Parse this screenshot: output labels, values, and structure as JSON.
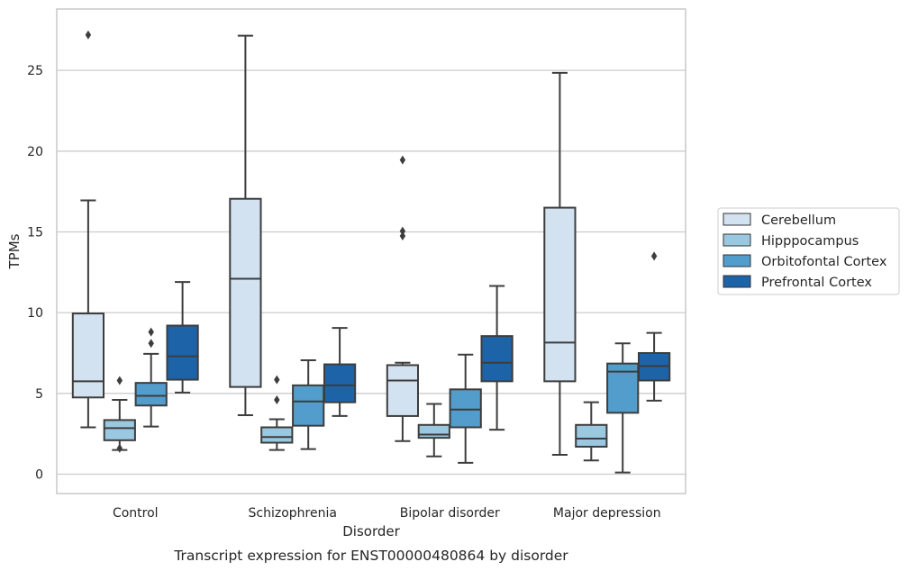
{
  "chart_data": {
    "type": "boxplot",
    "title": "",
    "caption": "Transcript expression for ENST00000480864 by disorder",
    "xlabel": "Disorder",
    "ylabel": "TPMs",
    "ylim": [
      -1.2,
      28.8
    ],
    "yticks": [
      "0",
      "5",
      "10",
      "15",
      "20",
      "25"
    ],
    "categories": [
      "Control",
      "Schizophrenia",
      "Bipolar disorder",
      "Major depression"
    ],
    "grid": "horizontal",
    "legend_position": "right",
    "series": [
      {
        "name": "Cerebellum",
        "color": "#d2e2f1",
        "boxes": [
          {
            "whisker_low": 2.9,
            "q1": 4.75,
            "median": 5.75,
            "q3": 9.95,
            "whisker_high": 16.95,
            "outliers": [
              27.2
            ]
          },
          {
            "whisker_low": 3.65,
            "q1": 5.4,
            "median": 12.1,
            "q3": 17.05,
            "whisker_high": 27.15,
            "outliers": []
          },
          {
            "whisker_low": 2.05,
            "q1": 3.6,
            "median": 5.8,
            "q3": 6.75,
            "whisker_high": 6.9,
            "outliers": [
              14.75,
              15.05,
              19.45
            ]
          },
          {
            "whisker_low": 1.2,
            "q1": 5.75,
            "median": 8.15,
            "q3": 16.5,
            "whisker_high": 24.85,
            "outliers": []
          }
        ]
      },
      {
        "name": "Hipppocampus",
        "color": "#9ac8e0",
        "boxes": [
          {
            "whisker_low": 1.5,
            "q1": 2.1,
            "median": 2.85,
            "q3": 3.35,
            "whisker_high": 4.6,
            "outliers": [
              1.6,
              5.8
            ]
          },
          {
            "whisker_low": 1.5,
            "q1": 1.95,
            "median": 2.3,
            "q3": 2.9,
            "whisker_high": 3.4,
            "outliers": [
              4.6,
              5.85
            ]
          },
          {
            "whisker_low": 1.1,
            "q1": 2.25,
            "median": 2.45,
            "q3": 3.05,
            "whisker_high": 4.35,
            "outliers": []
          },
          {
            "whisker_low": 0.85,
            "q1": 1.7,
            "median": 2.2,
            "q3": 3.05,
            "whisker_high": 4.45,
            "outliers": []
          }
        ]
      },
      {
        "name": "Orbitofontal Cortex",
        "color": "#529dcc",
        "boxes": [
          {
            "whisker_low": 2.95,
            "q1": 4.25,
            "median": 4.85,
            "q3": 5.65,
            "whisker_high": 7.45,
            "outliers": [
              8.1,
              8.8
            ]
          },
          {
            "whisker_low": 1.55,
            "q1": 3.0,
            "median": 4.5,
            "q3": 5.5,
            "whisker_high": 7.05,
            "outliers": []
          },
          {
            "whisker_low": 0.7,
            "q1": 2.9,
            "median": 4.0,
            "q3": 5.25,
            "whisker_high": 7.4,
            "outliers": []
          },
          {
            "whisker_low": 0.1,
            "q1": 3.8,
            "median": 6.35,
            "q3": 6.85,
            "whisker_high": 8.1,
            "outliers": []
          }
        ]
      },
      {
        "name": "Prefrontal Cortex",
        "color": "#1d63a8",
        "boxes": [
          {
            "whisker_low": 5.05,
            "q1": 5.85,
            "median": 7.3,
            "q3": 9.2,
            "whisker_high": 11.9,
            "outliers": []
          },
          {
            "whisker_low": 3.6,
            "q1": 4.45,
            "median": 5.5,
            "q3": 6.8,
            "whisker_high": 9.05,
            "outliers": []
          },
          {
            "whisker_low": 2.75,
            "q1": 5.75,
            "median": 6.9,
            "q3": 8.55,
            "whisker_high": 11.65,
            "outliers": []
          },
          {
            "whisker_low": 4.55,
            "q1": 5.8,
            "median": 6.7,
            "q3": 7.5,
            "whisker_high": 8.75,
            "outliers": [
              13.5
            ]
          }
        ]
      }
    ]
  }
}
